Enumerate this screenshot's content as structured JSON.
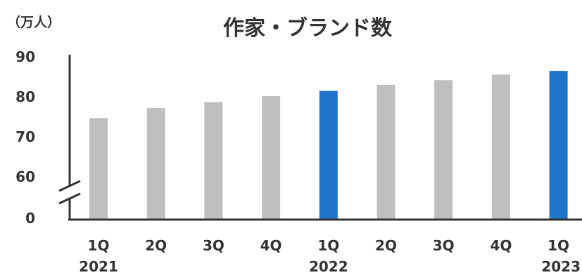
{
  "chart_data": {
    "type": "bar",
    "title": "作家・ブランド数",
    "ylabel": "（万人）",
    "xlabel": "",
    "categories": [
      "1Q 2021",
      "2Q",
      "3Q",
      "4Q",
      "1Q 2022",
      "2Q",
      "3Q",
      "4Q",
      "1Q 2023"
    ],
    "category_labels": [
      {
        "quarter": "1Q",
        "year": "2021"
      },
      {
        "quarter": "2Q",
        "year": ""
      },
      {
        "quarter": "3Q",
        "year": ""
      },
      {
        "quarter": "4Q",
        "year": ""
      },
      {
        "quarter": "1Q",
        "year": "2022"
      },
      {
        "quarter": "2Q",
        "year": ""
      },
      {
        "quarter": "3Q",
        "year": ""
      },
      {
        "quarter": "4Q",
        "year": ""
      },
      {
        "quarter": "1Q",
        "year": "2023"
      }
    ],
    "values": [
      74.5,
      77.0,
      78.5,
      80.0,
      81.3,
      82.8,
      84.0,
      85.4,
      86.3
    ],
    "highlight": [
      false,
      false,
      false,
      false,
      true,
      false,
      false,
      false,
      true
    ],
    "yticks": [
      "0",
      "60",
      "70",
      "80",
      "90"
    ],
    "ylim": [
      60,
      90
    ],
    "axis_break": true,
    "grid": false,
    "colors": {
      "bar": "#bfbfbf",
      "highlight": "#1f74c9",
      "axis": "#333333",
      "text": "#333333"
    }
  }
}
